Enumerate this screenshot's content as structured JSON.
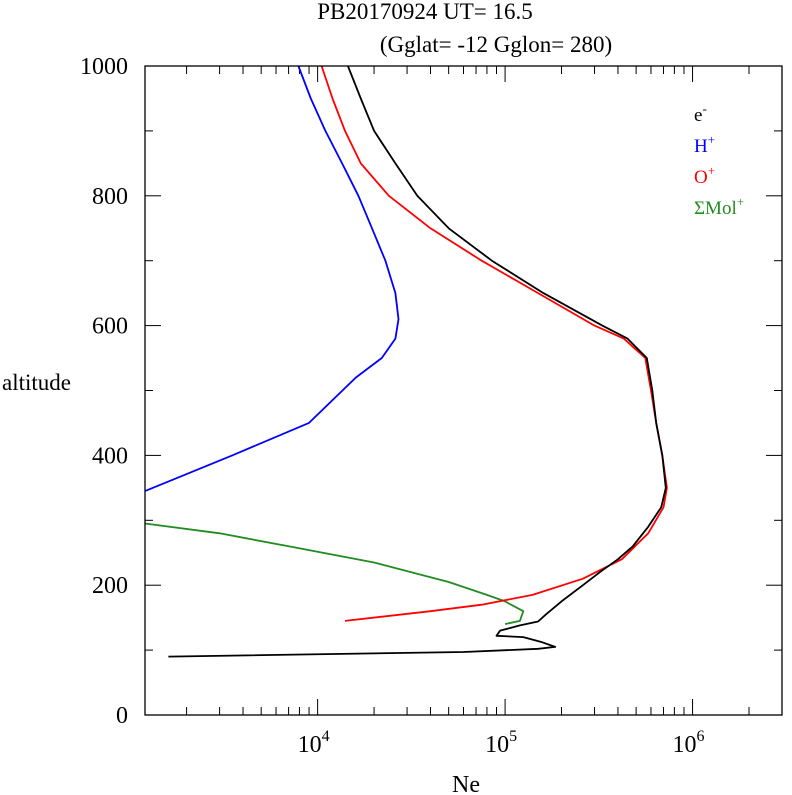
{
  "chart_data": {
    "type": "line",
    "title": "PB20170924   UT=  16.5",
    "subtitle": "(Gglat= -12   Gglon=  280)",
    "xlabel": "Ne",
    "ylabel": "altitude",
    "x_scale": "log",
    "xlim": [
      1200,
      3000000
    ],
    "ylim": [
      0,
      1000
    ],
    "x_tick_labels": [
      {
        "value": 10000,
        "base": "10",
        "exp": "4"
      },
      {
        "value": 100000,
        "base": "10",
        "exp": "5"
      },
      {
        "value": 1000000,
        "base": "10",
        "exp": "6"
      }
    ],
    "y_ticks": [
      0,
      200,
      400,
      600,
      800,
      1000
    ],
    "legend_position": "top-right",
    "grid": false,
    "series": [
      {
        "name": "e",
        "sup": "-",
        "color": "#000000",
        "points": [
          [
            1600,
            90
          ],
          [
            60000,
            97
          ],
          [
            150000,
            102
          ],
          [
            185000,
            105
          ],
          [
            158000,
            112
          ],
          [
            125000,
            120
          ],
          [
            90000,
            122
          ],
          [
            94000,
            130
          ],
          [
            120000,
            138
          ],
          [
            150000,
            144
          ],
          [
            165000,
            155
          ],
          [
            200000,
            175
          ],
          [
            260000,
            200
          ],
          [
            320000,
            220
          ],
          [
            400000,
            240
          ],
          [
            480000,
            260
          ],
          [
            580000,
            290
          ],
          [
            680000,
            320
          ],
          [
            720000,
            350
          ],
          [
            690000,
            400
          ],
          [
            640000,
            450
          ],
          [
            610000,
            500
          ],
          [
            570000,
            550
          ],
          [
            450000,
            580
          ],
          [
            330000,
            600
          ],
          [
            160000,
            650
          ],
          [
            85000,
            700
          ],
          [
            50000,
            750
          ],
          [
            34000,
            800
          ],
          [
            26000,
            850
          ],
          [
            20000,
            900
          ],
          [
            17000,
            950
          ],
          [
            14500,
            1000
          ]
        ]
      },
      {
        "name": "H",
        "sup": "+",
        "color": "#0000ff",
        "points": [
          [
            1200,
            345
          ],
          [
            3500,
            400
          ],
          [
            9000,
            450
          ],
          [
            16000,
            520
          ],
          [
            22000,
            550
          ],
          [
            26000,
            580
          ],
          [
            27000,
            610
          ],
          [
            26000,
            650
          ],
          [
            23000,
            700
          ],
          [
            19500,
            750
          ],
          [
            16500,
            800
          ],
          [
            13500,
            850
          ],
          [
            11000,
            900
          ],
          [
            9200,
            950
          ],
          [
            7900,
            1000
          ]
        ]
      },
      {
        "name": "O",
        "sup": "+",
        "color": "#ff0000",
        "points": [
          [
            14000,
            145
          ],
          [
            40000,
            160
          ],
          [
            75000,
            170
          ],
          [
            140000,
            185
          ],
          [
            260000,
            210
          ],
          [
            420000,
            240
          ],
          [
            580000,
            280
          ],
          [
            700000,
            320
          ],
          [
            730000,
            350
          ],
          [
            690000,
            400
          ],
          [
            640000,
            450
          ],
          [
            600000,
            500
          ],
          [
            560000,
            550
          ],
          [
            430000,
            580
          ],
          [
            300000,
            600
          ],
          [
            150000,
            650
          ],
          [
            75000,
            700
          ],
          [
            40000,
            750
          ],
          [
            24000,
            800
          ],
          [
            17000,
            850
          ],
          [
            14000,
            900
          ],
          [
            12000,
            950
          ],
          [
            10500,
            1000
          ]
        ]
      },
      {
        "name": "ΣMol",
        "sup": "+",
        "color": "#228b22",
        "points": [
          [
            1200,
            295
          ],
          [
            3000,
            280
          ],
          [
            7000,
            260
          ],
          [
            20000,
            235
          ],
          [
            50000,
            205
          ],
          [
            80000,
            185
          ],
          [
            100000,
            175
          ],
          [
            125000,
            160
          ],
          [
            120000,
            145
          ],
          [
            100000,
            140
          ]
        ]
      }
    ]
  }
}
